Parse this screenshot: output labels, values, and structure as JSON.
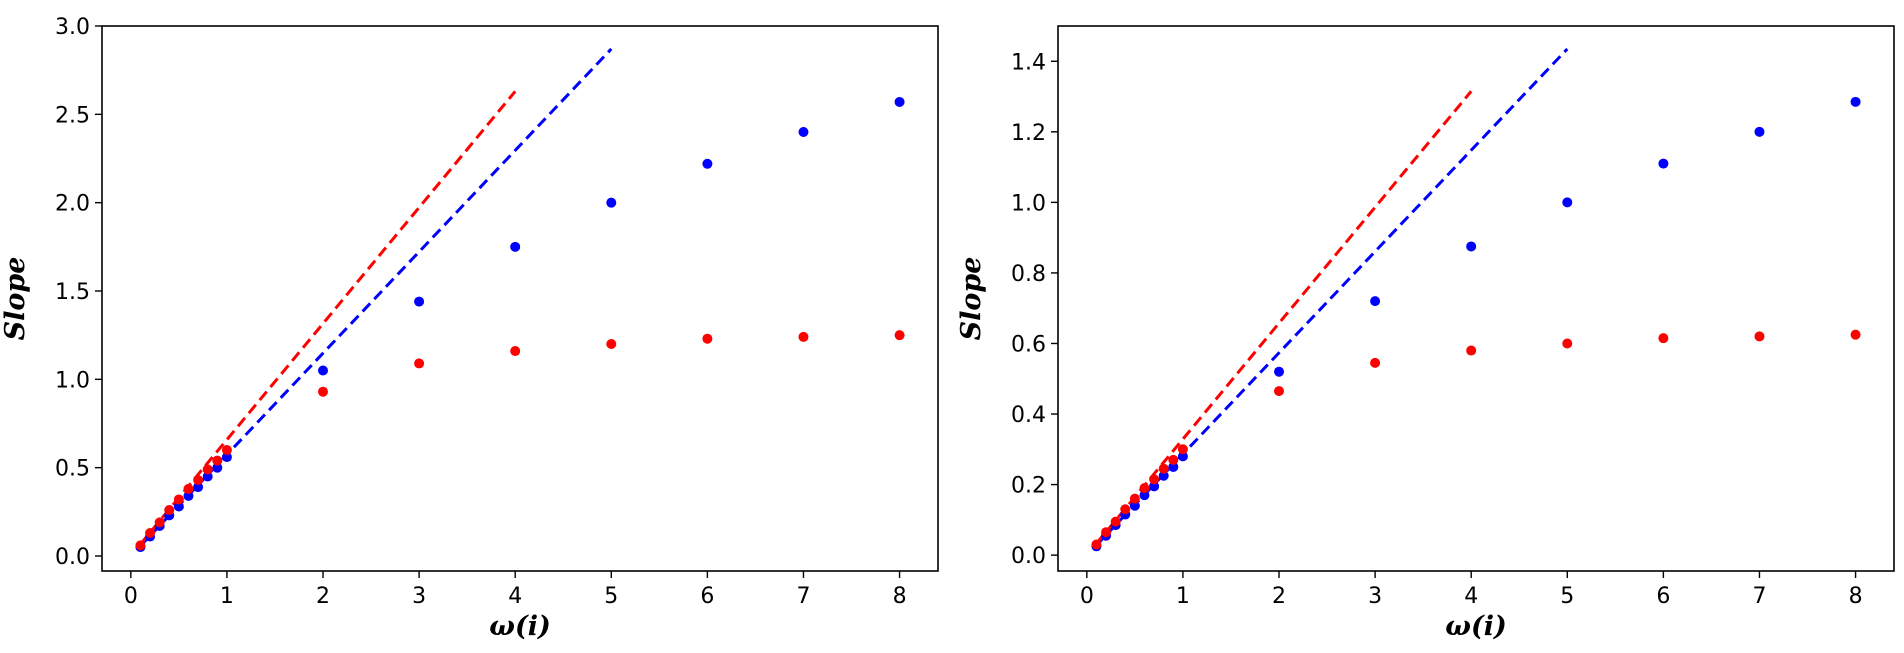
{
  "chart_data": [
    {
      "type": "scatter",
      "title": "",
      "xlabel": "ω(i)",
      "ylabel": "Slope",
      "xlim": [
        -0.3,
        8.4
      ],
      "ylim": [
        -0.085,
        3.0
      ],
      "xticks": [
        0,
        1,
        2,
        3,
        4,
        5,
        6,
        7,
        8
      ],
      "xtick_labels": [
        "0",
        "1",
        "2",
        "3",
        "4",
        "5",
        "6",
        "7",
        "8"
      ],
      "yticks": [
        0.0,
        0.5,
        1.0,
        1.5,
        2.0,
        2.5,
        3.0
      ],
      "ytick_labels": [
        "0.0",
        "0.5",
        "1.0",
        "1.5",
        "2.0",
        "2.5",
        "3.0"
      ],
      "grid": false,
      "series": [
        {
          "color": "#0000ff",
          "style": "points",
          "x": [
            0.1,
            0.2,
            0.3,
            0.4,
            0.5,
            0.6,
            0.7,
            0.8,
            0.9,
            1,
            2,
            3,
            4,
            5,
            6,
            7,
            8
          ],
          "y": [
            0.05,
            0.11,
            0.17,
            0.23,
            0.28,
            0.34,
            0.39,
            0.45,
            0.5,
            0.56,
            1.05,
            1.44,
            1.75,
            2.0,
            2.22,
            2.4,
            2.57
          ]
        },
        {
          "color": "#ff0000",
          "style": "points",
          "x": [
            0.1,
            0.2,
            0.3,
            0.4,
            0.5,
            0.6,
            0.7,
            0.8,
            0.9,
            1,
            2,
            3,
            4,
            5,
            6,
            7,
            8
          ],
          "y": [
            0.06,
            0.13,
            0.19,
            0.26,
            0.32,
            0.38,
            0.43,
            0.49,
            0.54,
            0.6,
            0.93,
            1.09,
            1.16,
            1.2,
            1.23,
            1.24,
            1.25
          ]
        },
        {
          "color": "#0000ff",
          "style": "dashed",
          "x": [
            0.1,
            5.0
          ],
          "y": [
            0.057,
            2.87
          ]
        },
        {
          "color": "#ff0000",
          "style": "dashed",
          "x": [
            0.1,
            4.0
          ],
          "y": [
            0.067,
            2.63
          ]
        }
      ]
    },
    {
      "type": "scatter",
      "title": "",
      "xlabel": "ω(i)",
      "ylabel": "Slope",
      "xlim": [
        -0.3,
        8.4
      ],
      "ylim": [
        -0.045,
        1.5
      ],
      "xticks": [
        0,
        1,
        2,
        3,
        4,
        5,
        6,
        7,
        8
      ],
      "xtick_labels": [
        "0",
        "1",
        "2",
        "3",
        "4",
        "5",
        "6",
        "7",
        "8"
      ],
      "yticks": [
        0.0,
        0.2,
        0.4,
        0.6,
        0.8,
        1.0,
        1.2,
        1.4
      ],
      "ytick_labels": [
        "0.0",
        "0.2",
        "0.4",
        "0.6",
        "0.8",
        "1.0",
        "1.2",
        "1.4"
      ],
      "grid": false,
      "series": [
        {
          "color": "#0000ff",
          "style": "points",
          "x": [
            0.1,
            0.2,
            0.3,
            0.4,
            0.5,
            0.6,
            0.7,
            0.8,
            0.9,
            1,
            2,
            3,
            4,
            5,
            6,
            7,
            8
          ],
          "y": [
            0.025,
            0.055,
            0.085,
            0.115,
            0.14,
            0.17,
            0.195,
            0.225,
            0.25,
            0.28,
            0.52,
            0.72,
            0.875,
            1.0,
            1.11,
            1.2,
            1.285
          ]
        },
        {
          "color": "#ff0000",
          "style": "points",
          "x": [
            0.1,
            0.2,
            0.3,
            0.4,
            0.5,
            0.6,
            0.7,
            0.8,
            0.9,
            1,
            2,
            3,
            4,
            5,
            6,
            7,
            8
          ],
          "y": [
            0.03,
            0.065,
            0.095,
            0.13,
            0.16,
            0.19,
            0.215,
            0.245,
            0.27,
            0.3,
            0.465,
            0.545,
            0.58,
            0.6,
            0.615,
            0.62,
            0.625
          ]
        },
        {
          "color": "#0000ff",
          "style": "dashed",
          "x": [
            0.1,
            5.0
          ],
          "y": [
            0.028,
            1.435
          ]
        },
        {
          "color": "#ff0000",
          "style": "dashed",
          "x": [
            0.1,
            4.0
          ],
          "y": [
            0.033,
            1.315
          ]
        }
      ]
    }
  ]
}
